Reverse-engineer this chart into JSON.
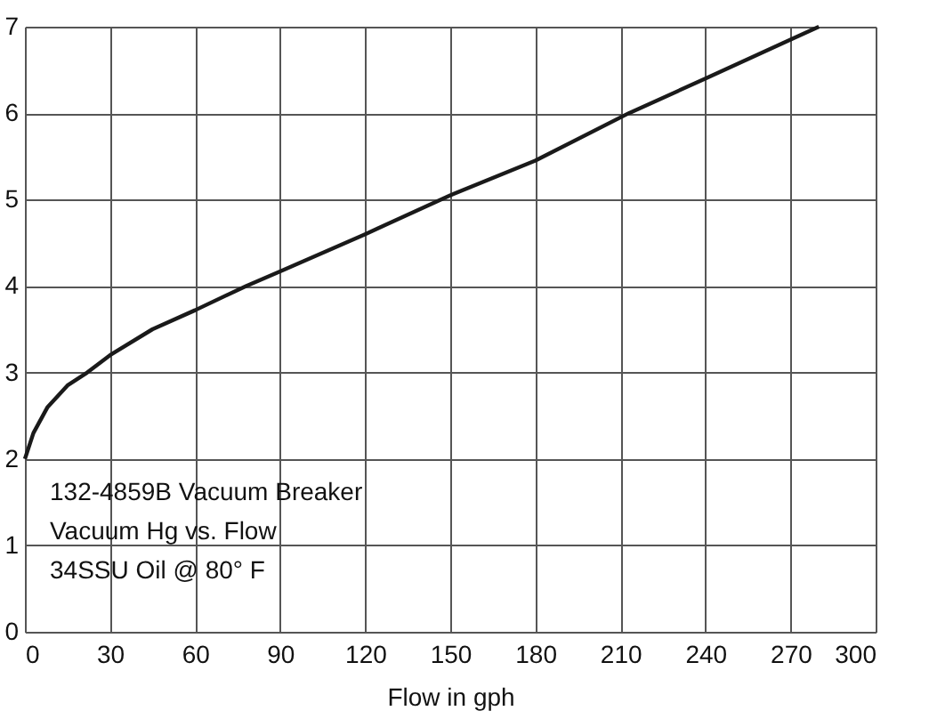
{
  "chart_data": {
    "type": "line",
    "xlabel": "Flow in gph",
    "x": [
      0,
      3,
      8,
      15,
      22,
      30,
      45,
      60,
      78,
      90,
      120,
      150,
      180,
      213,
      240,
      270,
      280
    ],
    "series": [
      {
        "color": "#1a1a1a",
        "values": [
          2.0,
          2.3,
          2.6,
          2.85,
          3.0,
          3.2,
          3.5,
          3.72,
          4.0,
          4.17,
          4.6,
          5.05,
          5.45,
          6.0,
          6.4,
          6.85,
          7.0
        ]
      }
    ],
    "xlim": [
      0,
      300
    ],
    "xticks": [
      0,
      30,
      60,
      90,
      120,
      150,
      180,
      210,
      240,
      270,
      300
    ],
    "ylim": [
      0,
      7
    ],
    "yticks": [
      0,
      1,
      2,
      3,
      4,
      5,
      6,
      7
    ],
    "grid": true,
    "marker": "none",
    "line_style": "solid",
    "annotations": [
      "132-4859B Vacuum Breaker",
      "Vacuum Hg vs. Flow",
      "34SSU Oil @ 80° F"
    ]
  }
}
